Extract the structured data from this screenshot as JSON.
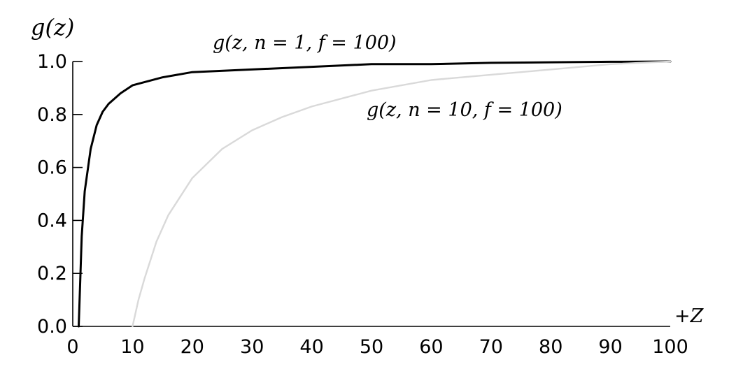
{
  "chart_data": {
    "type": "line",
    "title": "",
    "ylabel": "g(z)",
    "xlabel": "+Z",
    "xlim": [
      0,
      100
    ],
    "ylim": [
      0,
      1
    ],
    "grid": false,
    "legend": "none",
    "x_ticks": [
      "0",
      "10",
      "20",
      "30",
      "40",
      "50",
      "60",
      "70",
      "80",
      "90",
      "100"
    ],
    "y_ticks": [
      "0.0",
      "0.2",
      "0.4",
      "0.6",
      "0.8",
      "1.0"
    ],
    "series": [
      {
        "name": "g(z, n = 1, f = 100)",
        "n": 1,
        "f": 100,
        "color": "#000000",
        "x": [
          1,
          1.5,
          2,
          3,
          4,
          5,
          6,
          8,
          10,
          15,
          20,
          30,
          40,
          50,
          60,
          70,
          80,
          90,
          100
        ],
        "y": [
          0.0,
          0.34,
          0.51,
          0.67,
          0.76,
          0.81,
          0.84,
          0.88,
          0.91,
          0.94,
          0.96,
          0.97,
          0.98,
          0.99,
          0.99,
          0.995,
          0.997,
          0.999,
          1.0
        ]
      },
      {
        "name": "g(z, n = 10, f = 100)",
        "n": 10,
        "f": 100,
        "color": "#d9d9d9",
        "x": [
          10,
          11,
          12,
          14,
          16,
          18,
          20,
          25,
          30,
          35,
          40,
          50,
          60,
          70,
          80,
          90,
          100
        ],
        "y": [
          0.0,
          0.1,
          0.18,
          0.32,
          0.42,
          0.49,
          0.56,
          0.67,
          0.74,
          0.79,
          0.83,
          0.89,
          0.93,
          0.95,
          0.97,
          0.99,
          1.0
        ]
      }
    ]
  }
}
